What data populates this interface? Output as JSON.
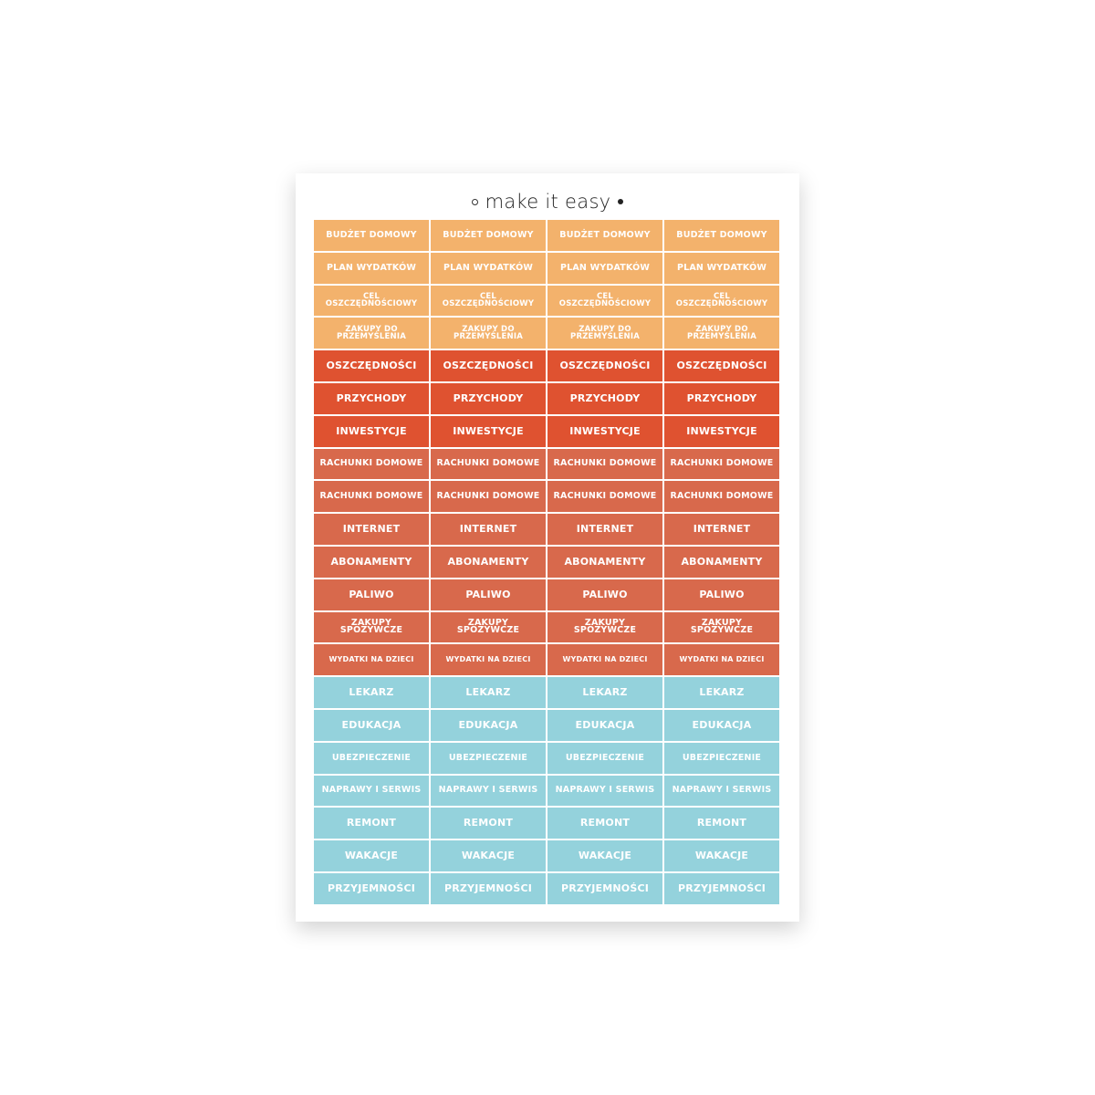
{
  "header": {
    "title": "make it easy"
  },
  "table": {
    "rows": [
      {
        "color": "#f3b26c",
        "cells": [
          "BUDŻET DOMOWY",
          "BUDŻET DOMOWY",
          "BUDŻET DOMOWY",
          "BUDŻET DOMOWY"
        ]
      },
      {
        "color": "#f3b26c",
        "cells": [
          "PLAN WYDATKÓW",
          "PLAN WYDATKÓW",
          "PLAN WYDATKÓW",
          "PLAN WYDATKÓW"
        ]
      },
      {
        "color": "#f3b26c",
        "cells": [
          "CEL OSZCZĘDNOŚCIOWY",
          "CEL OSZCZĘDNOŚCIOWY",
          "CEL OSZCZĘDNOŚCIOWY",
          "CEL OSZCZĘDNOŚCIOWY"
        ]
      },
      {
        "color": "#f3b26c",
        "cells": [
          "ZAKUPY DO PRZEMYŚLENIA",
          "ZAKUPY DO PRZEMYŚLENIA",
          "ZAKUPY DO PRZEMYŚLENIA",
          "ZAKUPY DO PRZEMYŚLENIA"
        ]
      },
      {
        "color": "#df5230",
        "cells": [
          "OSZCZĘDNOŚCI",
          "OSZCZĘDNOŚCI",
          "OSZCZĘDNOŚCI",
          "OSZCZĘDNOŚCI"
        ]
      },
      {
        "color": "#df5230",
        "cells": [
          "PRZYCHODY",
          "PRZYCHODY",
          "PRZYCHODY",
          "PRZYCHODY"
        ]
      },
      {
        "color": "#df5230",
        "cells": [
          "INWESTYCJE",
          "INWESTYCJE",
          "INWESTYCJE",
          "INWESTYCJE"
        ]
      },
      {
        "color": "#d8694c",
        "cells": [
          "RACHUNKI DOMOWE",
          "RACHUNKI DOMOWE",
          "RACHUNKI DOMOWE",
          "RACHUNKI DOMOWE"
        ]
      },
      {
        "color": "#d8694c",
        "cells": [
          "RACHUNKI DOMOWE",
          "RACHUNKI DOMOWE",
          "RACHUNKI DOMOWE",
          "RACHUNKI DOMOWE"
        ]
      },
      {
        "color": "#d8694c",
        "cells": [
          "INTERNET",
          "INTERNET",
          "INTERNET",
          "INTERNET"
        ]
      },
      {
        "color": "#d8694c",
        "cells": [
          "ABONAMENTY",
          "ABONAMENTY",
          "ABONAMENTY",
          "ABONAMENTY"
        ]
      },
      {
        "color": "#d8694c",
        "cells": [
          "PALIWO",
          "PALIWO",
          "PALIWO",
          "PALIWO"
        ]
      },
      {
        "color": "#d8694c",
        "cells": [
          "ZAKUPY SPOŻYWCZE",
          "ZAKUPY SPOŻYWCZE",
          "ZAKUPY SPOŻYWCZE",
          "ZAKUPY SPOŻYWCZE"
        ]
      },
      {
        "color": "#d8694c",
        "cells": [
          "WYDATKI NA DZIECI",
          "WYDATKI NA DZIECI",
          "WYDATKI NA DZIECI",
          "WYDATKI NA DZIECI"
        ]
      },
      {
        "color": "#94d2dc",
        "cells": [
          "LEKARZ",
          "LEKARZ",
          "LEKARZ",
          "LEKARZ"
        ]
      },
      {
        "color": "#94d2dc",
        "cells": [
          "EDUKACJA",
          "EDUKACJA",
          "EDUKACJA",
          "EDUKACJA"
        ]
      },
      {
        "color": "#94d2dc",
        "cells": [
          "UBEZPIECZENIE",
          "UBEZPIECZENIE",
          "UBEZPIECZENIE",
          "UBEZPIECZENIE"
        ]
      },
      {
        "color": "#94d2dc",
        "cells": [
          "NAPRAWY I SERWIS",
          "NAPRAWY I SERWIS",
          "NAPRAWY I SERWIS",
          "NAPRAWY I SERWIS"
        ]
      },
      {
        "color": "#94d2dc",
        "cells": [
          "REMONT",
          "REMONT",
          "REMONT",
          "REMONT"
        ]
      },
      {
        "color": "#94d2dc",
        "cells": [
          "WAKACJE",
          "WAKACJE",
          "WAKACJE",
          "WAKACJE"
        ]
      },
      {
        "color": "#94d2dc",
        "cells": [
          "PRZYJEMNOŚCI",
          "PRZYJEMNOŚCI",
          "PRZYJEMNOŚCI",
          "PRZYJEMNOŚCI"
        ]
      }
    ]
  }
}
